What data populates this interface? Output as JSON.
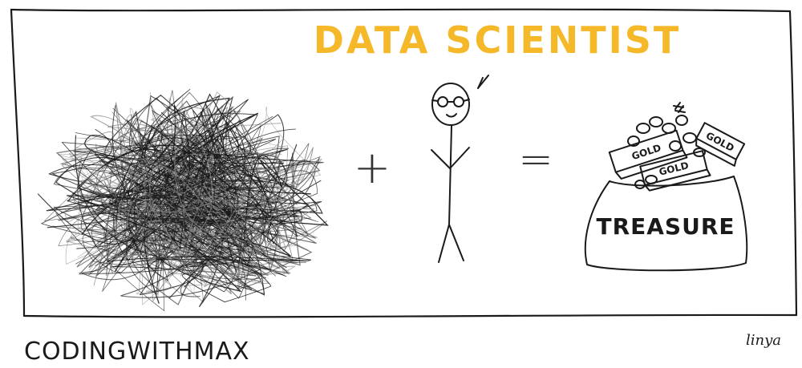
{
  "comic": {
    "title": "DATA SCIENTIST",
    "title_color": "#f5b829",
    "ink_color": "#1a1a1a",
    "plus_symbol": "+",
    "equals_symbol": "=",
    "bag_label": "TREASURE",
    "gold_bars": [
      "GOLD",
      "GOLD",
      "GOLD"
    ],
    "footer_left": "CODINGWITHMAX",
    "signature": "linya"
  }
}
